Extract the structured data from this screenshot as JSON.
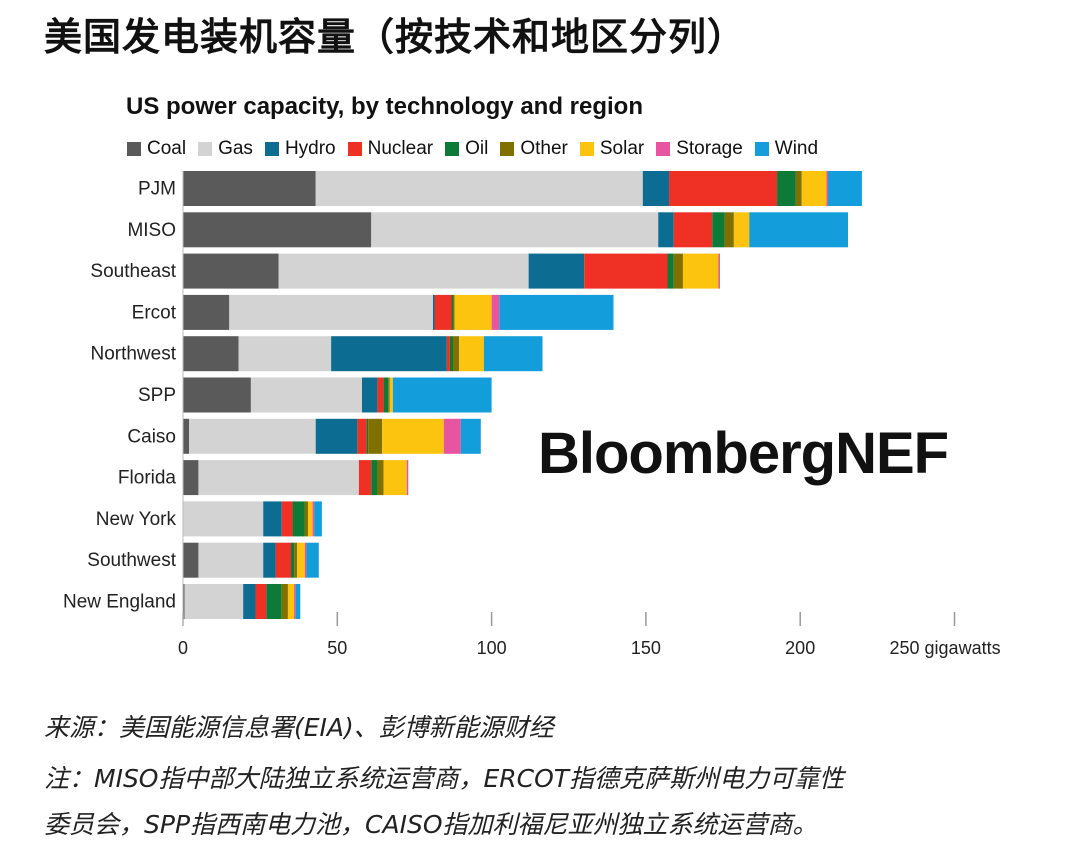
{
  "page_title": "美国发电装机容量（按技术和地区分列）",
  "watermark": "BloombergNEF",
  "footnotes": {
    "source": "来源：美国能源信息署(EIA)、彭博新能源财经",
    "note_line1": "注：MISO指中部大陆独立系统运营商，ERCOT指德克萨斯州电力可靠性",
    "note_line2": "委员会，SPP指西南电力池，CAISO指加利福尼亚州独立系统运营商。"
  },
  "chart_data": {
    "type": "bar",
    "orientation": "horizontal",
    "stacked": true,
    "title": "US power capacity, by technology and region",
    "xlabel": "gigawatts",
    "xlim": [
      0,
      250
    ],
    "xticks": [
      0,
      50,
      100,
      150,
      200,
      250
    ],
    "xtick_labels": [
      "0",
      "50",
      "100",
      "150",
      "200",
      "250 gigawatts"
    ],
    "categories": [
      "PJM",
      "MISO",
      "Southeast",
      "Ercot",
      "Northwest",
      "SPP",
      "Caiso",
      "Florida",
      "New York",
      "Southwest",
      "New England"
    ],
    "series": [
      {
        "name": "Coal",
        "color": "#5a5a5a",
        "values": [
          43,
          61,
          31,
          15,
          18,
          22,
          2,
          5,
          0,
          5,
          0.5
        ]
      },
      {
        "name": "Gas",
        "color": "#d3d3d3",
        "values": [
          106,
          93,
          81,
          66,
          30,
          36,
          41,
          52,
          26,
          21,
          19
        ]
      },
      {
        "name": "Hydro",
        "color": "#0d6c91",
        "values": [
          8.5,
          5,
          18,
          0.5,
          37.5,
          5,
          13.5,
          0,
          6,
          4,
          4
        ]
      },
      {
        "name": "Nuclear",
        "color": "#ee3124",
        "values": [
          35,
          12.5,
          27,
          5.5,
          1,
          2,
          3,
          4,
          3.5,
          5,
          3.5
        ]
      },
      {
        "name": "Oil",
        "color": "#0e7a37",
        "values": [
          6,
          4,
          2,
          0.5,
          1,
          1.5,
          0.5,
          2,
          4,
          1,
          5
        ]
      },
      {
        "name": "Other",
        "color": "#7f7000",
        "values": [
          2,
          3,
          3,
          0.5,
          2,
          0.5,
          4.5,
          2,
          1,
          1,
          2
        ]
      },
      {
        "name": "Solar",
        "color": "#fcc40f",
        "values": [
          8,
          5,
          11.5,
          12,
          8,
          1,
          20,
          7.5,
          1.5,
          2.5,
          2
        ]
      },
      {
        "name": "Storage",
        "color": "#e754a0",
        "values": [
          0.5,
          0,
          0.5,
          2.5,
          0,
          0,
          5.5,
          0.5,
          0.5,
          0.5,
          0.5
        ]
      },
      {
        "name": "Wind",
        "color": "#139ddb",
        "values": [
          11,
          32,
          0,
          37,
          19,
          32,
          6.5,
          0,
          2.5,
          4,
          1.5
        ]
      }
    ]
  }
}
